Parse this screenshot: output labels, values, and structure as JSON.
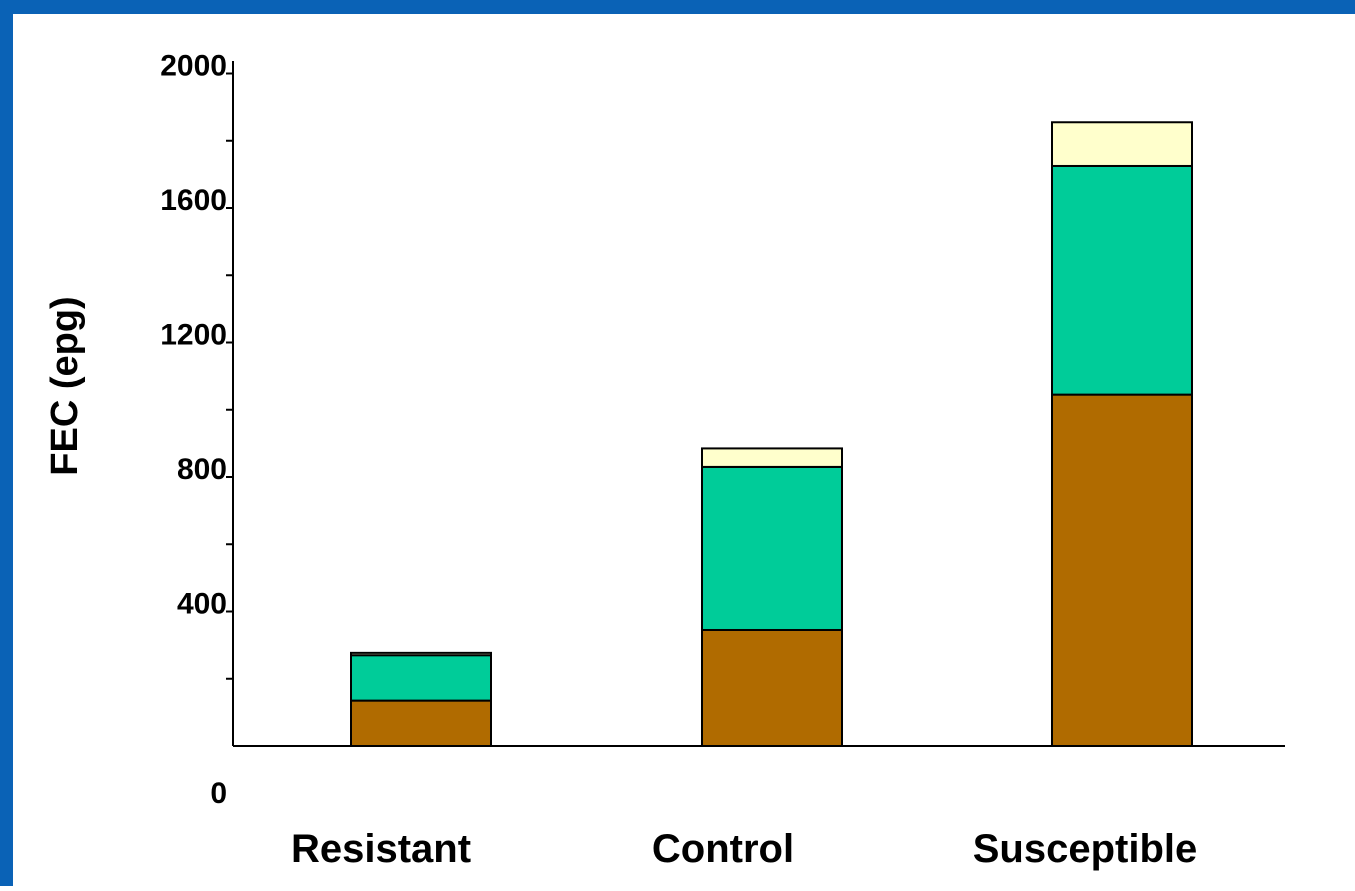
{
  "chart_data": {
    "type": "bar",
    "stacked": true,
    "title": "",
    "xlabel": "",
    "ylabel": "FEC (epg)",
    "categories": [
      "Resistant",
      "Control",
      "Susceptible"
    ],
    "series": [
      {
        "color": "#b06b00",
        "values": [
          135,
          345,
          1045
        ]
      },
      {
        "color": "#00cc99",
        "values": [
          135,
          485,
          680
        ]
      },
      {
        "color": "#ffffcc",
        "values": [
          7,
          55,
          130
        ]
      }
    ],
    "y_tick_labels": [
      "0",
      "400",
      "800",
      "1200",
      "1600",
      "2000"
    ],
    "ylim": [
      -200,
      2250
    ],
    "grid": false,
    "legend": "none"
  },
  "colors": {
    "border": "#0a62b6",
    "background": "#ffffff"
  }
}
